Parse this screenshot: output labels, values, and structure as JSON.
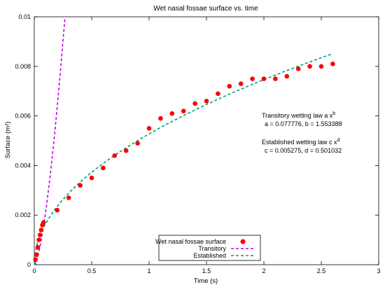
{
  "chart_data": {
    "type": "scatter",
    "title": "Wet nasal fossae surface vs. time",
    "xlabel": "Time (s)",
    "ylabel": "Surface (m²)",
    "xlim": [
      0,
      3
    ],
    "ylim": [
      0,
      0.01
    ],
    "x_ticks": [
      "0",
      "0.5",
      "1",
      "1.5",
      "2",
      "2.5",
      "3"
    ],
    "y_ticks": [
      "0",
      "0.002",
      "0.004",
      "0.006",
      "0.008",
      "0.01"
    ],
    "series": [
      {
        "name": "Wet nasal fossae surface",
        "style": "points",
        "color": "#ff0000",
        "x": [
          0.01,
          0.02,
          0.03,
          0.04,
          0.05,
          0.06,
          0.07,
          0.08,
          0.2,
          0.3,
          0.4,
          0.5,
          0.6,
          0.7,
          0.8,
          0.9,
          1.0,
          1.1,
          1.2,
          1.3,
          1.4,
          1.5,
          1.6,
          1.7,
          1.8,
          1.9,
          2.0,
          2.1,
          2.2,
          2.3,
          2.4,
          2.5,
          2.6
        ],
        "y": [
          0.0002,
          0.0004,
          0.0007,
          0.001,
          0.0012,
          0.0014,
          0.0016,
          0.0017,
          0.0022,
          0.0027,
          0.0032,
          0.0035,
          0.0039,
          0.0044,
          0.0046,
          0.0049,
          0.0055,
          0.0059,
          0.0061,
          0.0062,
          0.0065,
          0.0066,
          0.0069,
          0.0072,
          0.0073,
          0.0075,
          0.0075,
          0.0075,
          0.0076,
          0.0079,
          0.008,
          0.008,
          0.0081
        ]
      },
      {
        "name": "Transitory",
        "style": "dashed-line",
        "color": "#c000e0",
        "function": "a*x^b",
        "a": 0.077776,
        "b": 1.553388
      },
      {
        "name": "Established",
        "style": "dashed-line",
        "color": "#009e73",
        "function": "c*x^d",
        "c": 0.005275,
        "d": 0.501032
      }
    ],
    "annotations": {
      "transitory_law_prefix": "Transitory wetting law a  x",
      "transitory_law_exp": "b",
      "transitory_params": "a = 0.077776, b = 1.553388",
      "established_law_prefix": "Established wetting law c  x",
      "established_law_exp": "d",
      "established_params": "c = 0.005275, d = 0.501032"
    },
    "legend_position": "bottom-center"
  }
}
